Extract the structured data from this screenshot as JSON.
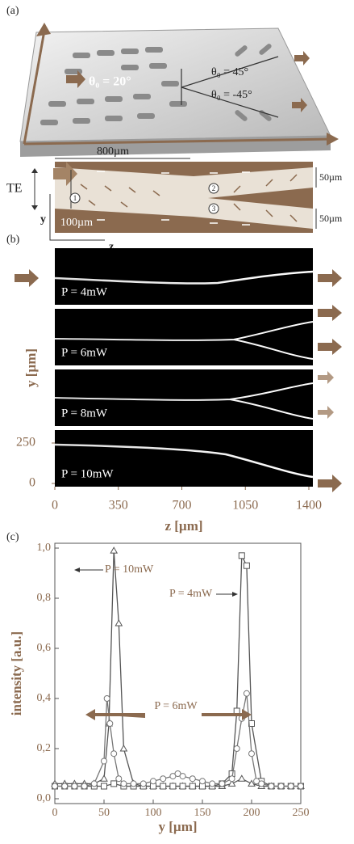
{
  "panel_a": {
    "label": "(a)",
    "angle_input": "θ₀ = 20°",
    "angle_upper": "θ₀ = 45°",
    "angle_lower": "θ₀ = -45°",
    "length": "800µm",
    "polarization": "TE",
    "axis_y": "y",
    "axis_z": "z",
    "input_width": "100µm",
    "branch_upper_width": "50µm",
    "branch_lower_width": "50µm",
    "markers": [
      "1",
      "2",
      "3"
    ]
  },
  "panel_b": {
    "label": "(b)",
    "powers": [
      "P = 4mW",
      "P = 6mW",
      "P = 8mW",
      "P = 10mW"
    ],
    "xlabel": "z [µm]",
    "ylabel": "y [µm]",
    "xlim": [
      0,
      1400
    ],
    "xticks": [
      0,
      350,
      700,
      1050,
      1400
    ],
    "ylim": [
      0,
      250
    ],
    "yticks": [
      0,
      250
    ]
  },
  "chart_data": {
    "type": "line",
    "panel_label": "(c)",
    "xlabel": "y [µm]",
    "ylabel": "intensity [a.u.]",
    "xlim": [
      0,
      250
    ],
    "xticks": [
      0,
      50,
      100,
      150,
      200,
      250
    ],
    "ylim": [
      0,
      1
    ],
    "yticks": [
      {
        "value": 0,
        "label": "0,0"
      },
      {
        "value": 0.2,
        "label": "0,2"
      },
      {
        "value": 0.4,
        "label": "0,4"
      },
      {
        "value": 0.6,
        "label": "0,6"
      },
      {
        "value": 0.8,
        "label": "0,8"
      },
      {
        "value": 1,
        "label": "1,0"
      }
    ],
    "series": [
      {
        "name": "P = 10mW",
        "color": "#555555",
        "marker": "triangle",
        "x": [
          0,
          10,
          20,
          30,
          40,
          50,
          55,
          60,
          65,
          70,
          80,
          90,
          100,
          110,
          120,
          130,
          140,
          150,
          160,
          170,
          180,
          190,
          200,
          210,
          220,
          230,
          240,
          250
        ],
        "values": [
          0.06,
          0.06,
          0.06,
          0.06,
          0.06,
          0.08,
          0.3,
          0.99,
          0.7,
          0.2,
          0.06,
          0.05,
          0.05,
          0.05,
          0.05,
          0.05,
          0.05,
          0.05,
          0.05,
          0.05,
          0.06,
          0.08,
          0.06,
          0.05,
          0.05,
          0.05,
          0.05,
          0.05
        ]
      },
      {
        "name": "P = 4mW",
        "color": "#555555",
        "marker": "square",
        "x": [
          0,
          10,
          20,
          30,
          40,
          50,
          60,
          70,
          80,
          90,
          100,
          110,
          120,
          130,
          140,
          150,
          160,
          170,
          180,
          185,
          190,
          195,
          200,
          210,
          220,
          230,
          240,
          250
        ],
        "values": [
          0.05,
          0.05,
          0.05,
          0.05,
          0.05,
          0.05,
          0.06,
          0.05,
          0.05,
          0.05,
          0.05,
          0.05,
          0.05,
          0.05,
          0.05,
          0.05,
          0.05,
          0.06,
          0.1,
          0.35,
          0.97,
          0.93,
          0.3,
          0.07,
          0.05,
          0.05,
          0.05,
          0.05
        ]
      },
      {
        "name": "P = 6mW",
        "color": "#777777",
        "marker": "circle",
        "x": [
          0,
          10,
          20,
          30,
          40,
          50,
          53,
          56,
          60,
          65,
          70,
          80,
          90,
          100,
          110,
          120,
          125,
          130,
          140,
          150,
          160,
          170,
          180,
          185,
          190,
          195,
          200,
          205,
          210,
          220,
          230,
          240,
          250
        ],
        "values": [
          0.05,
          0.05,
          0.05,
          0.05,
          0.06,
          0.15,
          0.4,
          0.3,
          0.18,
          0.08,
          0.06,
          0.06,
          0.06,
          0.07,
          0.08,
          0.09,
          0.1,
          0.09,
          0.08,
          0.07,
          0.06,
          0.06,
          0.08,
          0.2,
          0.32,
          0.42,
          0.18,
          0.07,
          0.06,
          0.05,
          0.05,
          0.05,
          0.05
        ]
      }
    ]
  }
}
